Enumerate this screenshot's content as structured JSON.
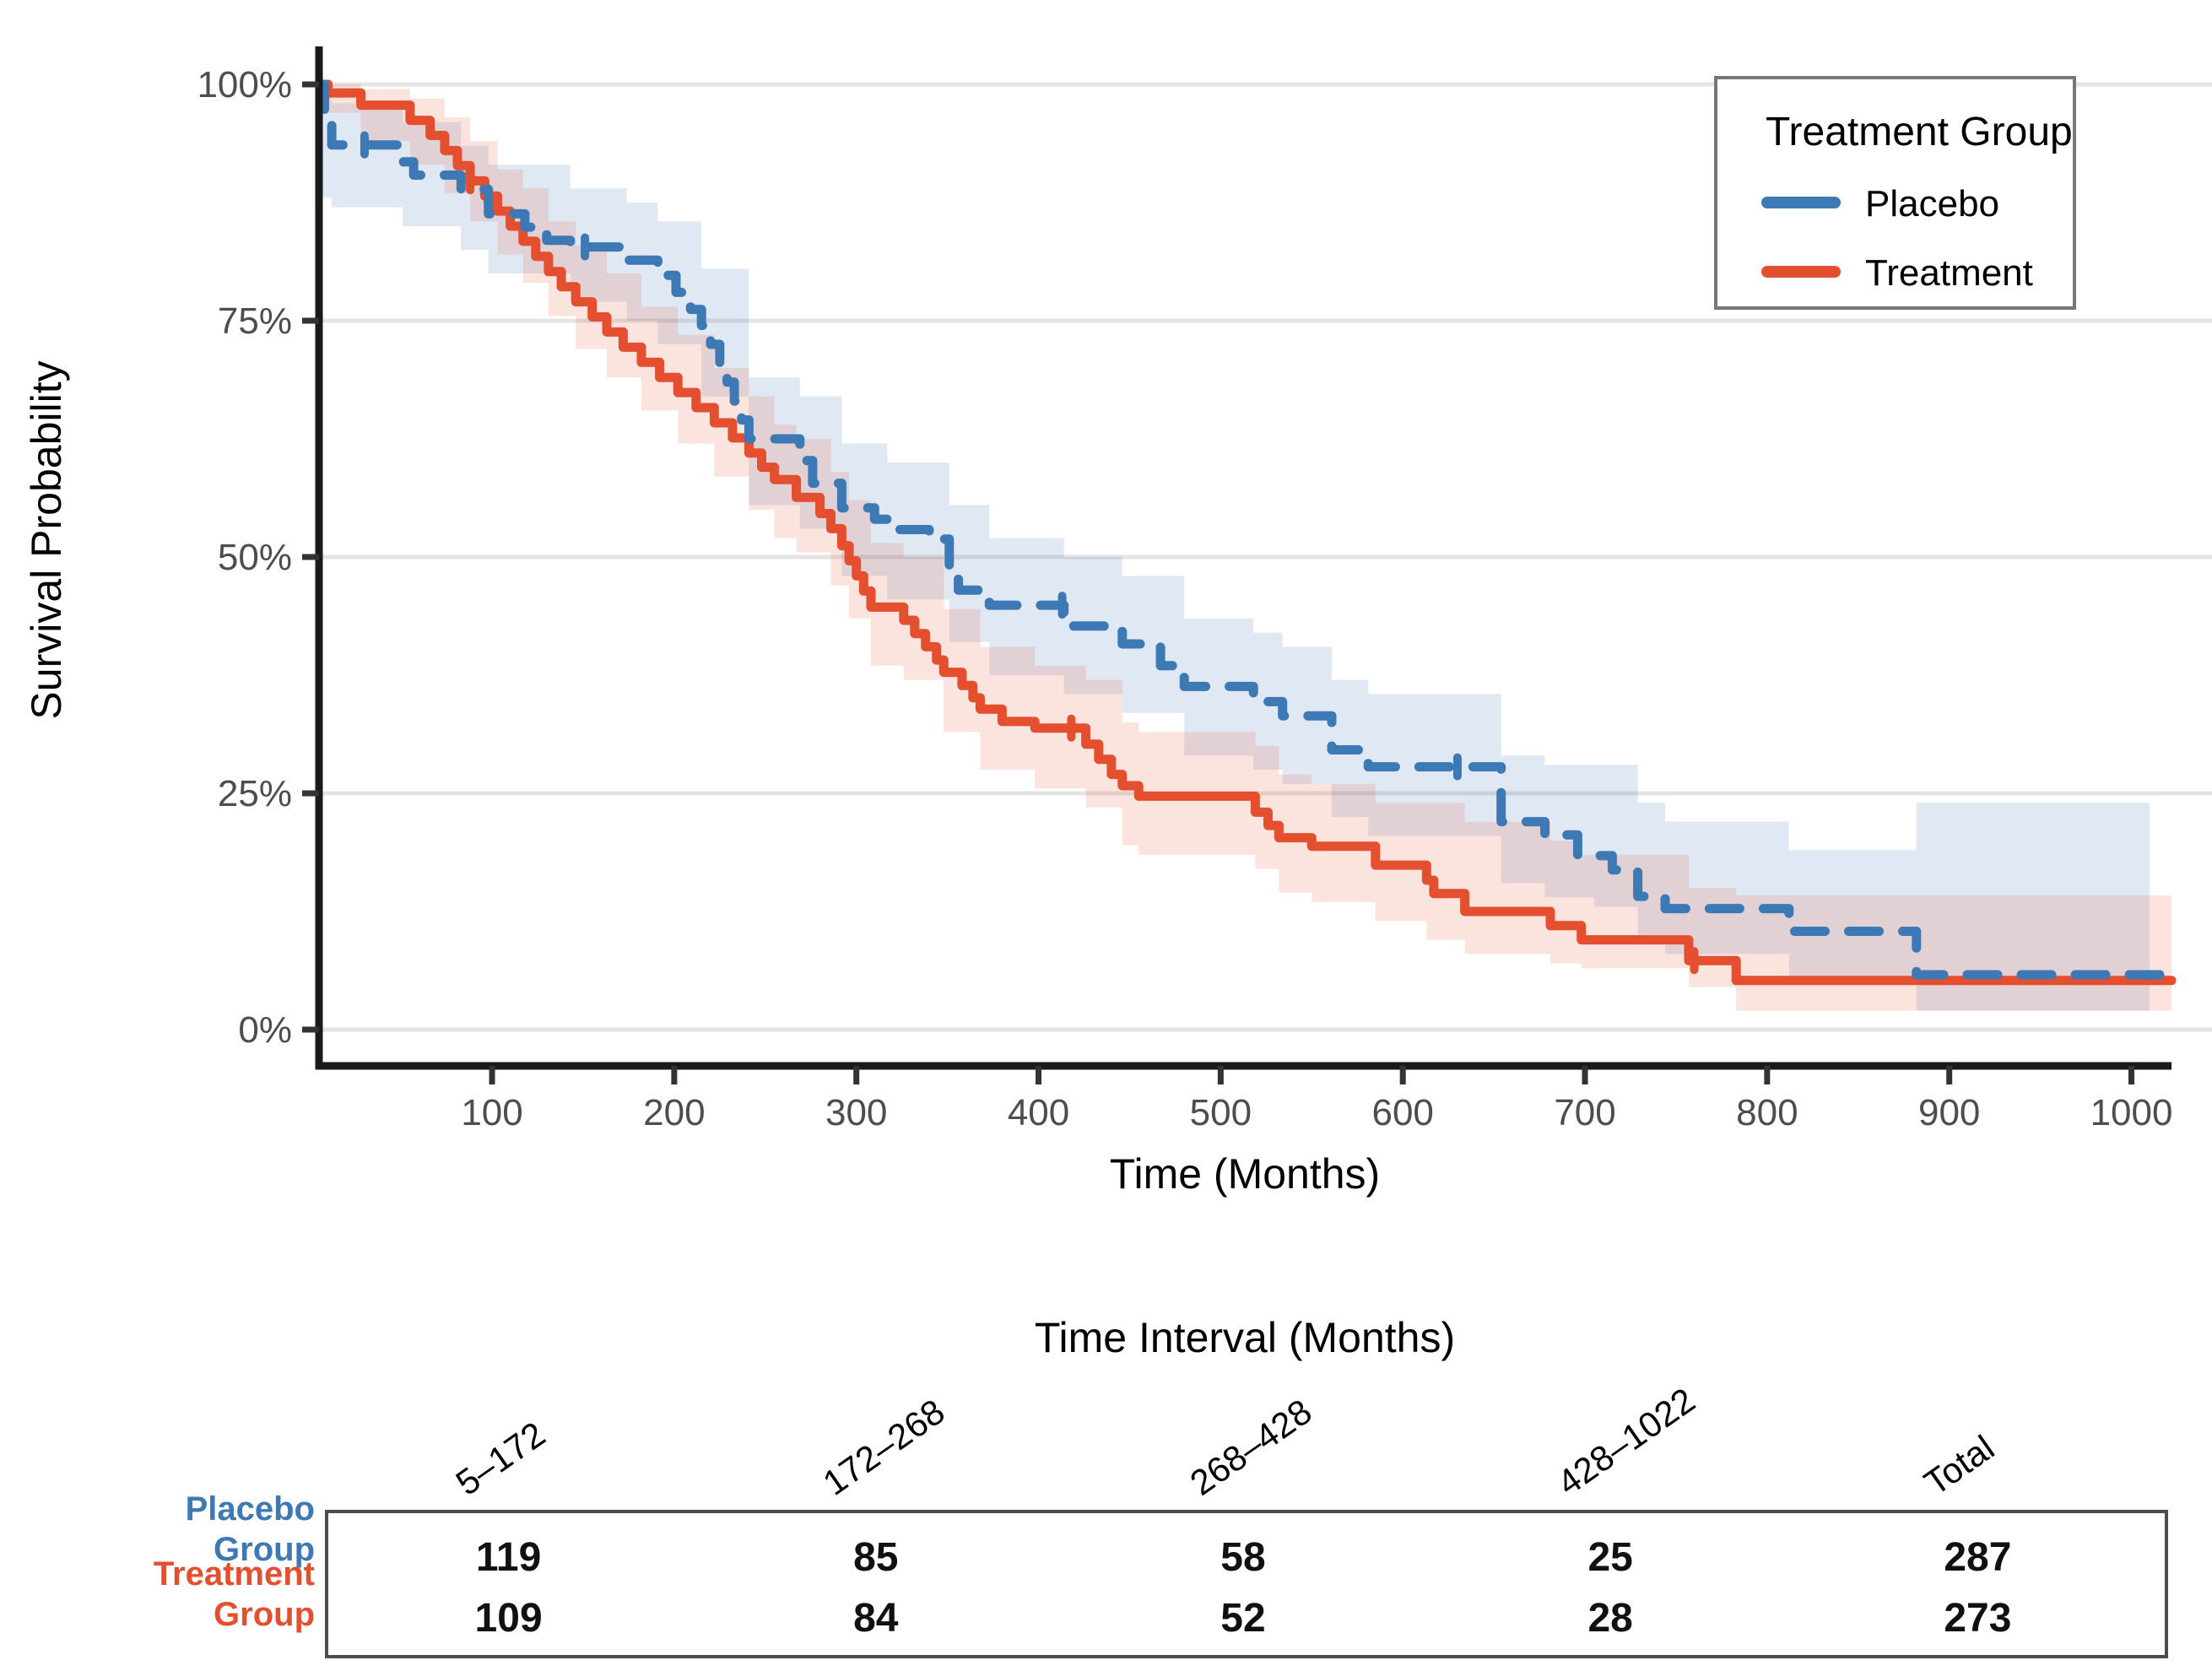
{
  "colors": {
    "placebo": "#3C79B5",
    "treatment": "#E4502F",
    "placebo_ribbon": "#3C79B5",
    "treatment_ribbon": "#E4502F",
    "gridline": "#E4E4E4",
    "axis_line": "#1a1a1a",
    "tick_label": "#4D4D4D",
    "legend_border": "#777777",
    "table_border": "#4d4d4d"
  },
  "chart_data": {
    "type": "line",
    "subtype": "kaplan-meier-step",
    "title": "",
    "xlabel": "Time (Months)",
    "ylabel": "Survival Probability",
    "xlim": [
      5,
      1022
    ],
    "ylim": [
      0,
      100
    ],
    "grid": "horizontal-only",
    "x_ticks": [
      100,
      200,
      300,
      400,
      500,
      600,
      700,
      800,
      900,
      1000
    ],
    "y_ticks": [
      0,
      25,
      50,
      75,
      100
    ],
    "y_tick_labels": [
      "0%",
      "25%",
      "50%",
      "75%",
      "100%"
    ],
    "legend_title": "Treatment Group",
    "legend_position": "top-right-inside",
    "series": [
      {
        "name": "Placebo",
        "color": "#3C79B5",
        "style": "dashed",
        "steps": [
          [
            5,
            100
          ],
          [
            8,
            96.5
          ],
          [
            12,
            93.6
          ],
          [
            51,
            91.8
          ],
          [
            57,
            90.4
          ],
          [
            83,
            88.9
          ],
          [
            98,
            86.3
          ],
          [
            118,
            84.9
          ],
          [
            130,
            83.5
          ],
          [
            143,
            82.8
          ],
          [
            174,
            81.4
          ],
          [
            191,
            79.8
          ],
          [
            201,
            78.0
          ],
          [
            209,
            76.2
          ],
          [
            215,
            74.5
          ],
          [
            220,
            72.5
          ],
          [
            225,
            70.5
          ],
          [
            229,
            68.5
          ],
          [
            233,
            66.5
          ],
          [
            237,
            64.5
          ],
          [
            241,
            62.5
          ],
          [
            269,
            60.2
          ],
          [
            276,
            57.8
          ],
          [
            292,
            55.2
          ],
          [
            310,
            54.0
          ],
          [
            317,
            52.9
          ],
          [
            340,
            51.9
          ],
          [
            351,
            48.2
          ],
          [
            356,
            46.5
          ],
          [
            373,
            44.9
          ],
          [
            414,
            42.7
          ],
          [
            446,
            40.8
          ],
          [
            467,
            38.5
          ],
          [
            480,
            36.3
          ],
          [
            518,
            34.7
          ],
          [
            534,
            33.2
          ],
          [
            561,
            29.6
          ],
          [
            581,
            27.8
          ],
          [
            654,
            22.0
          ],
          [
            678,
            20.6
          ],
          [
            696,
            18.4
          ],
          [
            715,
            16.9
          ],
          [
            729,
            14.1
          ],
          [
            744,
            12.8
          ],
          [
            812,
            10.4
          ],
          [
            882,
            5.8
          ]
        ],
        "end_time": 1022,
        "censor_times": [
          30,
          151,
          413,
          630
        ],
        "ribbon": [
          [
            5,
            88,
            100
          ],
          [
            12,
            87,
            98
          ],
          [
            51,
            85,
            96
          ],
          [
            83,
            82.5,
            93.5
          ],
          [
            98,
            80,
            91.5
          ],
          [
            143,
            77,
            89
          ],
          [
            174,
            75,
            87.5
          ],
          [
            191,
            72.5,
            85.5
          ],
          [
            215,
            67,
            80.5
          ],
          [
            241,
            55.5,
            69
          ],
          [
            269,
            53,
            67
          ],
          [
            292,
            48,
            62
          ],
          [
            317,
            45.5,
            60
          ],
          [
            351,
            41,
            55.5
          ],
          [
            373,
            37.5,
            52
          ],
          [
            414,
            35.5,
            50
          ],
          [
            446,
            33.5,
            48
          ],
          [
            480,
            29,
            43.5
          ],
          [
            518,
            27.5,
            42
          ],
          [
            534,
            26,
            40.5
          ],
          [
            561,
            22.5,
            37
          ],
          [
            581,
            20.5,
            35.5
          ],
          [
            654,
            15.5,
            29
          ],
          [
            678,
            14,
            28
          ],
          [
            705,
            13,
            28
          ],
          [
            729,
            9,
            24
          ],
          [
            744,
            8,
            22
          ],
          [
            812,
            5,
            19
          ],
          [
            882,
            2,
            24
          ]
        ],
        "ribbon_end": 1010
      },
      {
        "name": "Treatment",
        "color": "#E4502F",
        "style": "solid",
        "steps": [
          [
            5,
            100
          ],
          [
            10,
            99.1
          ],
          [
            28,
            97.8
          ],
          [
            55,
            96.2
          ],
          [
            66,
            94.6
          ],
          [
            74,
            93.0
          ],
          [
            81,
            91.4
          ],
          [
            88,
            89.8
          ],
          [
            96,
            88.2
          ],
          [
            103,
            86.6
          ],
          [
            110,
            85.0
          ],
          [
            117,
            83.4
          ],
          [
            124,
            81.8
          ],
          [
            131,
            80.2
          ],
          [
            138,
            78.6
          ],
          [
            146,
            77.0
          ],
          [
            155,
            75.4
          ],
          [
            163,
            73.8
          ],
          [
            172,
            72.2
          ],
          [
            182,
            70.6
          ],
          [
            192,
            69.0
          ],
          [
            202,
            67.4
          ],
          [
            212,
            65.8
          ],
          [
            222,
            64.2
          ],
          [
            232,
            62.6
          ],
          [
            241,
            61.0
          ],
          [
            248,
            59.5
          ],
          [
            255,
            58.2
          ],
          [
            267,
            56.3
          ],
          [
            280,
            54.6
          ],
          [
            286,
            53.0
          ],
          [
            292,
            51.2
          ],
          [
            296,
            49.6
          ],
          [
            300,
            48.0
          ],
          [
            304,
            46.4
          ],
          [
            308,
            44.7
          ],
          [
            326,
            43.3
          ],
          [
            332,
            41.9
          ],
          [
            338,
            40.5
          ],
          [
            344,
            39.1
          ],
          [
            348,
            37.8
          ],
          [
            358,
            36.4
          ],
          [
            364,
            35.1
          ],
          [
            368,
            33.9
          ],
          [
            380,
            32.6
          ],
          [
            398,
            31.9
          ],
          [
            426,
            30.2
          ],
          [
            433,
            28.6
          ],
          [
            440,
            27.0
          ],
          [
            446,
            25.8
          ],
          [
            455,
            24.7
          ],
          [
            519,
            23.0
          ],
          [
            526,
            21.6
          ],
          [
            532,
            20.3
          ],
          [
            550,
            19.4
          ],
          [
            585,
            17.4
          ],
          [
            613,
            15.8
          ],
          [
            617,
            14.4
          ],
          [
            634,
            12.5
          ],
          [
            681,
            11.0
          ],
          [
            698,
            9.5
          ],
          [
            757,
            7.3
          ],
          [
            783,
            5.2
          ]
        ],
        "end_time": 1022,
        "censor_times": [
          88,
          418,
          760
        ],
        "ribbon": [
          [
            5,
            97,
            100
          ],
          [
            28,
            94,
            99.5
          ],
          [
            55,
            91.5,
            98.5
          ],
          [
            74,
            88.5,
            96.5
          ],
          [
            88,
            85.5,
            94
          ],
          [
            103,
            82,
            91
          ],
          [
            117,
            79,
            89
          ],
          [
            131,
            75.5,
            85.5
          ],
          [
            146,
            72,
            83
          ],
          [
            163,
            69,
            80
          ],
          [
            182,
            65.5,
            76.5
          ],
          [
            202,
            62,
            73.5
          ],
          [
            222,
            58.5,
            70
          ],
          [
            241,
            55,
            67
          ],
          [
            255,
            52,
            64
          ],
          [
            267,
            50.5,
            62.5
          ],
          [
            286,
            47,
            59
          ],
          [
            296,
            43.5,
            56
          ],
          [
            308,
            38.5,
            51.5
          ],
          [
            326,
            37,
            50
          ],
          [
            348,
            31.5,
            44.5
          ],
          [
            368,
            27.5,
            40.5
          ],
          [
            398,
            25.5,
            38.5
          ],
          [
            426,
            23.5,
            37
          ],
          [
            446,
            19.5,
            32.5
          ],
          [
            455,
            18.5,
            31.5
          ],
          [
            519,
            17,
            30
          ],
          [
            532,
            14.5,
            27
          ],
          [
            550,
            13.5,
            26
          ],
          [
            585,
            11.5,
            24
          ],
          [
            613,
            9.5,
            24
          ],
          [
            634,
            8,
            22
          ],
          [
            681,
            7,
            20
          ],
          [
            698,
            6.5,
            18.5
          ],
          [
            757,
            4.5,
            15
          ],
          [
            783,
            2,
            14.2
          ]
        ],
        "ribbon_end": 1022
      }
    ]
  },
  "risk_table": {
    "title": "Time Interval (Months)",
    "columns": [
      "5–172",
      "172–268",
      "268–428",
      "428–1022",
      "Total"
    ],
    "rows": [
      {
        "label": "Placebo Group",
        "label_lines": [
          "Placebo",
          "Group"
        ],
        "color": "#3C79B5",
        "values": [
          "119",
          "85",
          "58",
          "25",
          "287"
        ]
      },
      {
        "label": "Treatment Group",
        "label_lines": [
          "Treatment",
          "Group"
        ],
        "color": "#E4502F",
        "values": [
          "109",
          "84",
          "52",
          "28",
          "273"
        ]
      }
    ]
  }
}
